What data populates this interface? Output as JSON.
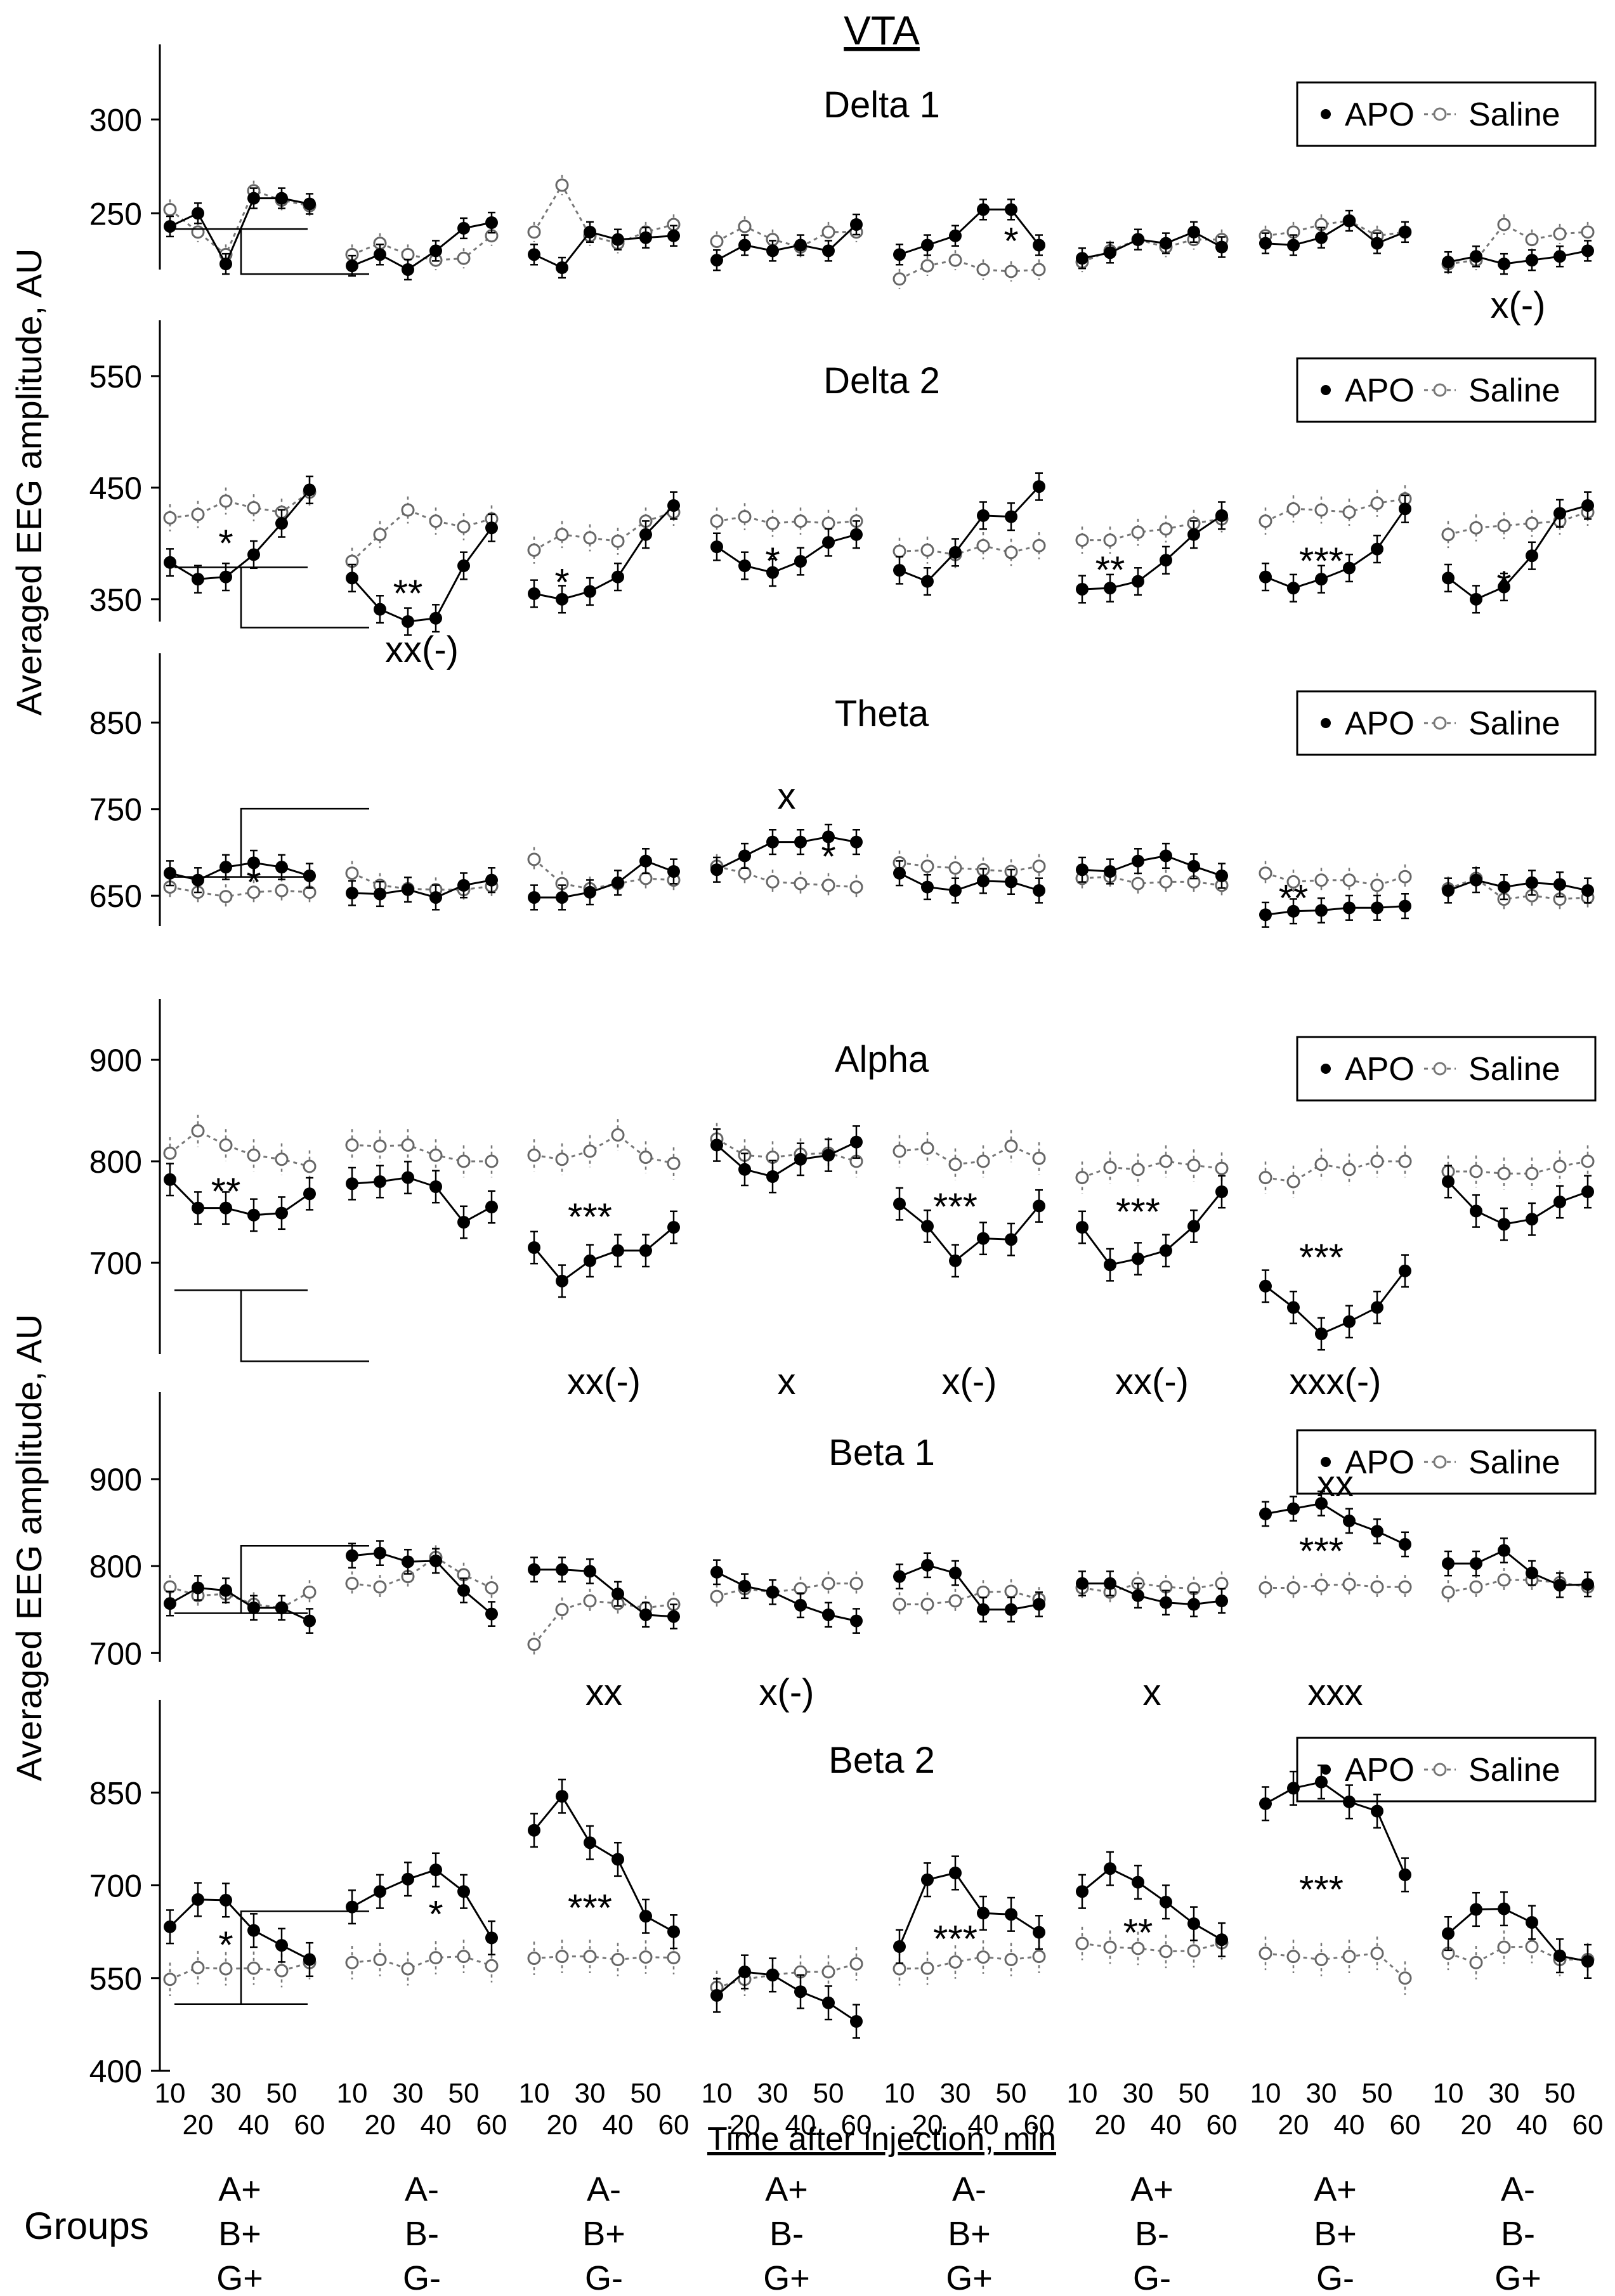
{
  "title": "VTA",
  "y_axis_labels": [
    "Averaged EEG amplitude, AU",
    "Averaged EEG amplitude, AU"
  ],
  "x_axis_title": "Time after injection, min",
  "x_tick_labels_top": [
    "10",
    "30",
    "50"
  ],
  "x_tick_labels_bottom": [
    "20",
    "40",
    "60"
  ],
  "legend": {
    "apo": "APO",
    "saline": "Saline"
  },
  "groups_label": "Groups",
  "groups": [
    [
      "A+",
      "B+",
      "G+"
    ],
    [
      "A-",
      "B-",
      "G-"
    ],
    [
      "A-",
      "B+",
      "G-"
    ],
    [
      "A+",
      "B-",
      "G+"
    ],
    [
      "A-",
      "B+",
      "G+"
    ],
    [
      "A+",
      "B-",
      "G-"
    ],
    [
      "A+",
      "B+",
      "G-"
    ],
    [
      "A-",
      "B-",
      "G+"
    ]
  ],
  "chart_data": {
    "type": "line",
    "x": [
      10,
      20,
      30,
      40,
      50,
      60
    ],
    "series_names": [
      "APO",
      "Saline"
    ],
    "panels": [
      {
        "title": "Delta 1",
        "ylim": [
          220,
          340
        ],
        "yticks": [
          250,
          300
        ],
        "apo": [
          [
            243,
            250,
            223,
            258,
            258,
            255
          ],
          [
            222,
            228,
            220,
            230,
            242,
            245
          ],
          [
            228,
            221,
            240,
            236,
            237,
            238
          ],
          [
            225,
            233,
            230,
            233,
            230,
            244
          ],
          [
            228,
            233,
            238,
            252,
            252,
            233
          ],
          [
            226,
            229,
            236,
            234,
            240,
            232
          ],
          [
            234,
            233,
            237,
            246,
            234,
            240
          ],
          [
            224,
            227,
            223,
            225,
            227,
            230
          ]
        ],
        "saline": [
          [
            252,
            240,
            228,
            262,
            257,
            254
          ],
          [
            228,
            234,
            228,
            225,
            226,
            238
          ],
          [
            240,
            265,
            238,
            234,
            240,
            244
          ],
          [
            235,
            243,
            236,
            232,
            240,
            240
          ],
          [
            215,
            222,
            225,
            220,
            219,
            220
          ],
          [
            224,
            230,
            236,
            232,
            236,
            236
          ],
          [
            238,
            240,
            244,
            246,
            238,
            240
          ],
          [
            223,
            225,
            244,
            236,
            239,
            240
          ]
        ],
        "stars": [
          {
            "col": 4,
            "x": 50,
            "y": 235,
            "text": "*"
          }
        ],
        "xmarks": [
          {
            "col": 7,
            "y": 201,
            "text": "x(-)"
          }
        ]
      },
      {
        "title": "Delta 2",
        "ylim": [
          330,
          600
        ],
        "yticks": [
          350,
          450,
          550
        ],
        "apo": [
          [
            383,
            368,
            370,
            390,
            418,
            448
          ],
          [
            369,
            341,
            330,
            333,
            380,
            414
          ],
          [
            355,
            350,
            357,
            370,
            408,
            434
          ],
          [
            397,
            380,
            374,
            384,
            401,
            408
          ],
          [
            376,
            366,
            392,
            425,
            424,
            451
          ],
          [
            359,
            360,
            366,
            385,
            408,
            425
          ],
          [
            370,
            360,
            368,
            378,
            395,
            431
          ],
          [
            369,
            350,
            361,
            389,
            427,
            434
          ]
        ],
        "saline": [
          [
            423,
            426,
            438,
            432,
            428,
            446
          ],
          [
            384,
            408,
            430,
            420,
            415,
            422
          ],
          [
            394,
            408,
            405,
            402,
            420,
            428
          ],
          [
            420,
            424,
            418,
            420,
            418,
            420
          ],
          [
            393,
            394,
            390,
            398,
            392,
            398
          ],
          [
            403,
            403,
            410,
            413,
            418,
            422
          ],
          [
            420,
            431,
            430,
            428,
            436,
            440
          ],
          [
            408,
            414,
            416,
            418,
            420,
            428
          ]
        ],
        "stars": [
          {
            "col": 0,
            "x": 30,
            "y": 400,
            "text": "*"
          },
          {
            "col": 1,
            "x": 30,
            "y": 355,
            "text": "**"
          },
          {
            "col": 2,
            "x": 20,
            "y": 365,
            "text": "*"
          },
          {
            "col": 3,
            "x": 30,
            "y": 384,
            "text": "*"
          },
          {
            "col": 5,
            "x": 20,
            "y": 376,
            "text": "**"
          },
          {
            "col": 6,
            "x": 30,
            "y": 384,
            "text": "***"
          },
          {
            "col": 7,
            "x": 30,
            "y": 363,
            "text": "*"
          }
        ],
        "xmarks": [
          {
            "col": 1,
            "y": 305,
            "text": "xx(-)"
          }
        ]
      },
      {
        "title": "Theta",
        "ylim": [
          615,
          930
        ],
        "yticks": [
          650,
          750,
          850
        ],
        "apo": [
          [
            676,
            668,
            683,
            688,
            683,
            673
          ],
          [
            653,
            652,
            657,
            648,
            662,
            668
          ],
          [
            648,
            648,
            654,
            665,
            690,
            678
          ],
          [
            680,
            696,
            712,
            712,
            718,
            712
          ],
          [
            676,
            660,
            656,
            667,
            666,
            656
          ],
          [
            680,
            678,
            690,
            696,
            684,
            673
          ],
          [
            628,
            632,
            633,
            636,
            636,
            638
          ],
          [
            656,
            668,
            660,
            665,
            663,
            656
          ]
        ],
        "saline": [
          [
            660,
            654,
            649,
            654,
            656,
            654
          ],
          [
            676,
            662,
            658,
            657,
            657,
            661
          ],
          [
            692,
            664,
            658,
            664,
            670,
            668
          ],
          [
            684,
            676,
            666,
            664,
            662,
            660
          ],
          [
            688,
            684,
            682,
            680,
            678,
            684
          ],
          [
            670,
            672,
            664,
            666,
            666,
            662
          ],
          [
            676,
            666,
            668,
            668,
            662,
            672
          ],
          [
            658,
            670,
            646,
            650,
            646,
            648
          ]
        ],
        "stars": [
          {
            "col": 0,
            "x": 40,
            "y": 665,
            "text": "*"
          },
          {
            "col": 3,
            "x": 50,
            "y": 695,
            "text": "*"
          },
          {
            "col": 6,
            "x": 20,
            "y": 647,
            "text": "**"
          }
        ],
        "xmarks": [
          {
            "col": 3,
            "y": 765,
            "text": "x"
          }
        ]
      },
      {
        "title": "Alpha",
        "ylim": [
          610,
          960
        ],
        "yticks": [
          700,
          800,
          900
        ],
        "apo": [
          [
            782,
            754,
            754,
            747,
            749,
            768
          ],
          [
            778,
            780,
            784,
            775,
            740,
            755
          ],
          [
            715,
            682,
            702,
            712,
            712,
            735
          ],
          [
            816,
            792,
            785,
            802,
            806,
            819
          ],
          [
            758,
            736,
            702,
            724,
            723,
            756
          ],
          [
            735,
            698,
            704,
            712,
            736,
            770
          ],
          [
            677,
            656,
            630,
            642,
            656,
            692
          ],
          [
            780,
            751,
            738,
            743,
            760,
            770
          ]
        ],
        "saline": [
          [
            808,
            830,
            816,
            806,
            802,
            795
          ],
          [
            816,
            815,
            816,
            806,
            800,
            800
          ],
          [
            806,
            802,
            810,
            826,
            804,
            798
          ],
          [
            822,
            806,
            804,
            807,
            808,
            800
          ],
          [
            810,
            813,
            797,
            800,
            815,
            803
          ],
          [
            784,
            794,
            792,
            800,
            796,
            793
          ],
          [
            784,
            780,
            797,
            792,
            800,
            800
          ],
          [
            790,
            790,
            788,
            788,
            795,
            800
          ]
        ],
        "stars": [
          {
            "col": 0,
            "x": 30,
            "y": 770,
            "text": "**"
          },
          {
            "col": 2,
            "x": 30,
            "y": 745,
            "text": "***"
          },
          {
            "col": 4,
            "x": 30,
            "y": 755,
            "text": "***"
          },
          {
            "col": 5,
            "x": 30,
            "y": 750,
            "text": "***"
          },
          {
            "col": 6,
            "x": 30,
            "y": 705,
            "text": "***"
          }
        ],
        "xmarks": [
          {
            "col": 2,
            "y": 583,
            "text": "xx(-)"
          },
          {
            "col": 3,
            "y": 583,
            "text": "x"
          },
          {
            "col": 4,
            "y": 583,
            "text": "x(-)"
          },
          {
            "col": 5,
            "y": 583,
            "text": "xx(-)"
          },
          {
            "col": 6,
            "y": 583,
            "text": "xxx(-)"
          }
        ]
      },
      {
        "title": "Beta 1",
        "ylim": [
          690,
          1000
        ],
        "yticks": [
          700,
          800,
          900
        ],
        "apo": [
          [
            757,
            775,
            772,
            752,
            752,
            737
          ],
          [
            812,
            815,
            805,
            806,
            772,
            745
          ],
          [
            796,
            796,
            794,
            768,
            744,
            742
          ],
          [
            793,
            777,
            770,
            755,
            744,
            737
          ],
          [
            788,
            801,
            792,
            750,
            750,
            756
          ],
          [
            780,
            780,
            766,
            758,
            756,
            760
          ],
          [
            860,
            866,
            872,
            852,
            840,
            825
          ],
          [
            803,
            803,
            818,
            792,
            778,
            779
          ]
        ],
        "saline": [
          [
            776,
            766,
            768,
            756,
            752,
            770
          ],
          [
            780,
            776,
            788,
            810,
            790,
            775
          ],
          [
            710,
            750,
            760,
            757,
            752,
            756
          ],
          [
            765,
            774,
            770,
            774,
            780,
            780
          ],
          [
            756,
            756,
            760,
            770,
            771,
            762
          ],
          [
            775,
            770,
            780,
            776,
            774,
            780
          ],
          [
            775,
            775,
            778,
            779,
            776,
            776
          ],
          [
            770,
            776,
            784,
            784,
            781,
            776
          ]
        ],
        "stars": [
          {
            "col": 6,
            "x": 30,
            "y": 817,
            "text": "***"
          }
        ],
        "xmarks": [
          {
            "col": 6,
            "y": 895,
            "text": "xx"
          },
          {
            "col": 2,
            "y": 655,
            "text": "xx"
          },
          {
            "col": 3,
            "y": 655,
            "text": "x(-)"
          },
          {
            "col": 5,
            "y": 655,
            "text": "x"
          },
          {
            "col": 6,
            "y": 655,
            "text": "xxx"
          }
        ]
      },
      {
        "title": "Beta 2",
        "ylim": [
          400,
          1000
        ],
        "yticks": [
          400,
          550,
          700,
          850
        ],
        "apo": [
          [
            633,
            677,
            676,
            627,
            603,
            580
          ],
          [
            665,
            690,
            710,
            725,
            690,
            615
          ],
          [
            789,
            844,
            769,
            742,
            650,
            625
          ],
          [
            522,
            560,
            555,
            528,
            510,
            480
          ],
          [
            601,
            709,
            720,
            655,
            653,
            624
          ],
          [
            690,
            727,
            705,
            673,
            638,
            612
          ],
          [
            832,
            857,
            867,
            835,
            820,
            717
          ],
          [
            622,
            661,
            662,
            640,
            586,
            577
          ]
        ],
        "saline": [
          [
            548,
            567,
            565,
            566,
            562,
            575
          ],
          [
            575,
            580,
            565,
            583,
            585,
            570
          ],
          [
            582,
            585,
            585,
            580,
            584,
            583
          ],
          [
            535,
            548,
            555,
            560,
            560,
            573
          ],
          [
            565,
            566,
            576,
            584,
            580,
            585
          ],
          [
            606,
            600,
            598,
            593,
            594,
            607
          ],
          [
            590,
            585,
            580,
            585,
            590,
            550
          ],
          [
            590,
            575,
            600,
            601,
            580,
            580
          ]
        ],
        "stars": [
          {
            "col": 0,
            "x": 30,
            "y": 603,
            "text": "*"
          },
          {
            "col": 1,
            "x": 40,
            "y": 653,
            "text": "*"
          },
          {
            "col": 2,
            "x": 30,
            "y": 663,
            "text": "***"
          },
          {
            "col": 4,
            "x": 30,
            "y": 613,
            "text": "***"
          },
          {
            "col": 5,
            "x": 30,
            "y": 623,
            "text": "**"
          },
          {
            "col": 6,
            "x": 30,
            "y": 693,
            "text": "***"
          }
        ],
        "xmarks": []
      }
    ]
  }
}
